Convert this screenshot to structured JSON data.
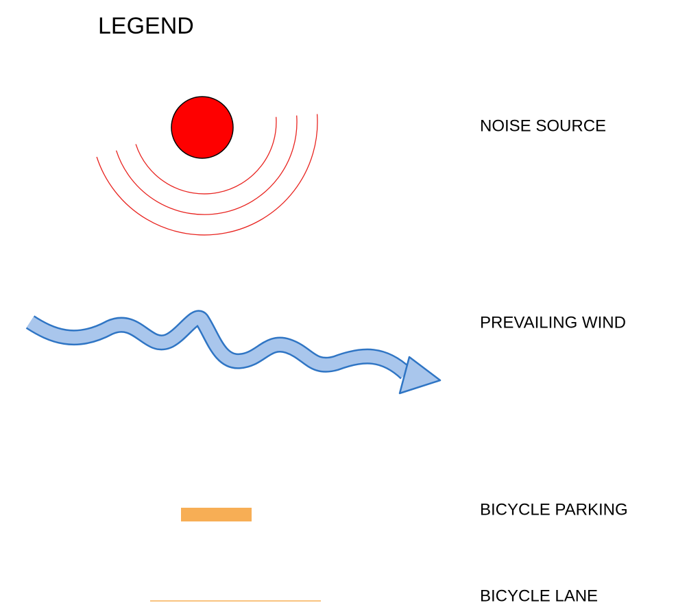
{
  "title": "LEGEND",
  "items": [
    {
      "label": "NOISE SOURCE"
    },
    {
      "label": "PREVAILING WIND"
    },
    {
      "label": "BICYCLE PARKING"
    },
    {
      "label": "BICYCLE LANE"
    }
  ]
}
